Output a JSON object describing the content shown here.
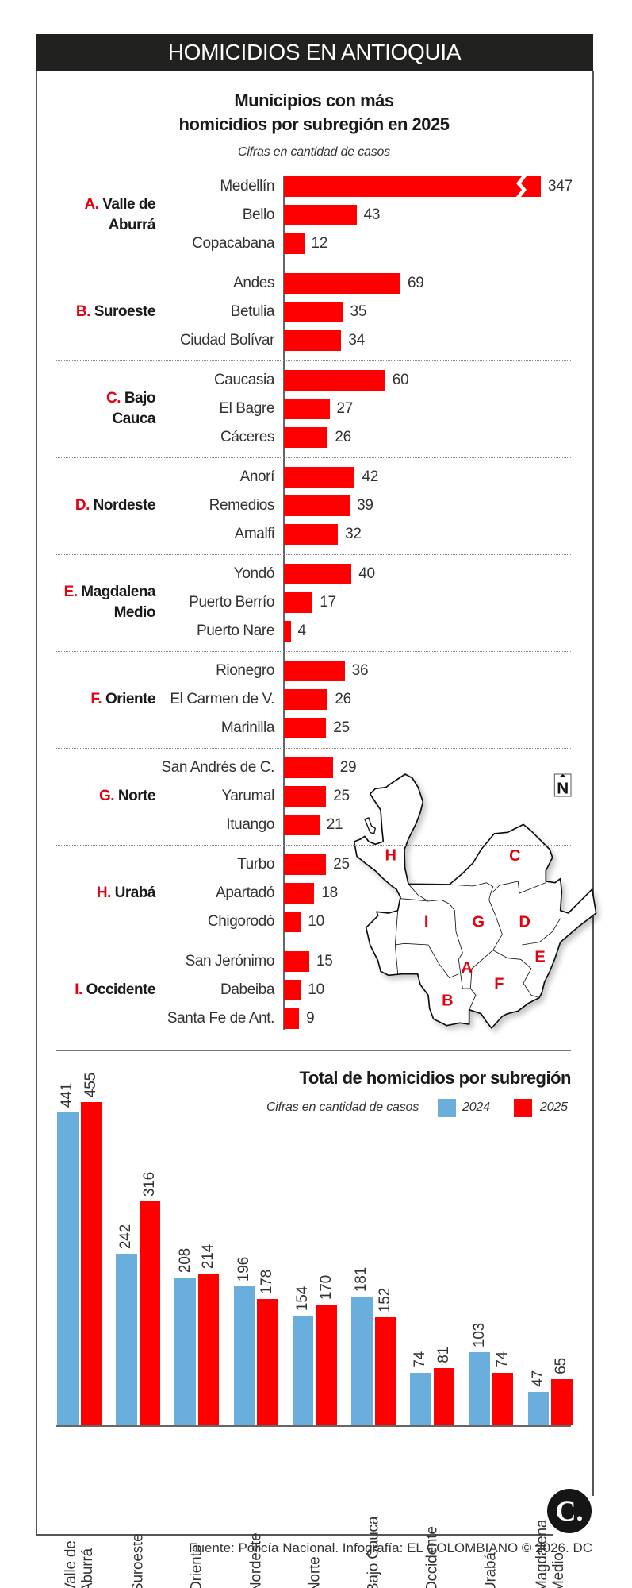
{
  "header": {
    "title": "HOMICIDIOS EN ANTIOQUIA"
  },
  "colors": {
    "accent_red": "#ff0000",
    "series_2024": "#6aaedd",
    "series_2025": "#ff0000",
    "header_bg": "#21211f"
  },
  "chart_data": [
    {
      "type": "bar",
      "orientation": "horizontal",
      "title_lines": [
        "Municipios con más",
        "homicidios por subregión en 2025"
      ],
      "subtitle": "Cifras en cantidad de casos",
      "note": "",
      "groups": [
        {
          "letter": "A.",
          "name_lines": [
            "Valle de",
            "Aburrá"
          ],
          "items": [
            {
              "name": "Medellín",
              "value": 347,
              "broken": true
            },
            {
              "name": "Bello",
              "value": 43
            },
            {
              "name": "Copacabana",
              "value": 12
            }
          ]
        },
        {
          "letter": "B.",
          "name_lines": [
            "Suroeste"
          ],
          "items": [
            {
              "name": "Andes",
              "value": 69
            },
            {
              "name": "Betulia",
              "value": 35
            },
            {
              "name": "Ciudad Bolívar",
              "value": 34
            }
          ]
        },
        {
          "letter": "C.",
          "name_lines": [
            "Bajo",
            "Cauca"
          ],
          "items": [
            {
              "name": "Caucasia",
              "value": 60
            },
            {
              "name": "El Bagre",
              "value": 27
            },
            {
              "name": "Cáceres",
              "value": 26
            }
          ]
        },
        {
          "letter": "D.",
          "name_lines": [
            "Nordeste"
          ],
          "items": [
            {
              "name": "Anorí",
              "value": 42
            },
            {
              "name": "Remedios",
              "value": 39
            },
            {
              "name": "Amalfi",
              "value": 32
            }
          ]
        },
        {
          "letter": "E.",
          "name_lines": [
            "Magdalena",
            "Medio"
          ],
          "items": [
            {
              "name": "Yondó",
              "value": 40
            },
            {
              "name": "Puerto Berrío",
              "value": 17
            },
            {
              "name": "Puerto Nare",
              "value": 4
            }
          ]
        },
        {
          "letter": "F.",
          "name_lines": [
            "Oriente"
          ],
          "items": [
            {
              "name": "Rionegro",
              "value": 36
            },
            {
              "name": "El Carmen de V.",
              "value": 26
            },
            {
              "name": "Marinilla",
              "value": 25
            }
          ]
        },
        {
          "letter": "G.",
          "name_lines": [
            "Norte"
          ],
          "items": [
            {
              "name": "San Andrés de C.",
              "value": 29
            },
            {
              "name": "Yarumal",
              "value": 25
            },
            {
              "name": "Ituango",
              "value": 21
            }
          ]
        },
        {
          "letter": "H.",
          "name_lines": [
            "Urabá"
          ],
          "items": [
            {
              "name": "Turbo",
              "value": 25
            },
            {
              "name": "Apartadó",
              "value": 18
            },
            {
              "name": "Chigorodó",
              "value": 10
            }
          ]
        },
        {
          "letter": "I.",
          "name_lines": [
            "Occidente"
          ],
          "items": [
            {
              "name": "San Jerónimo",
              "value": 15
            },
            {
              "name": "Dabeiba",
              "value": 10
            },
            {
              "name": "Santa Fe de Ant.",
              "value": 9
            }
          ]
        }
      ]
    },
    {
      "type": "bar",
      "orientation": "vertical",
      "title": "Total de homicidios por subregión",
      "subtitle": "Cifras en cantidad de casos",
      "legend_position": "top-right",
      "categories": [
        [
          "Valle de",
          "Aburrá"
        ],
        [
          "Suroeste"
        ],
        [
          "Oriente"
        ],
        [
          "Nordeste"
        ],
        [
          "Norte"
        ],
        [
          "Bajo Cauca"
        ],
        [
          "Occidente"
        ],
        [
          "Urabá"
        ],
        [
          "Magdalena",
          "Medio"
        ]
      ],
      "series": [
        {
          "name": "2024",
          "color": "#6aaedd",
          "values": [
            441,
            242,
            208,
            196,
            154,
            181,
            74,
            103,
            47
          ]
        },
        {
          "name": "2025",
          "color": "#ff0000",
          "values": [
            455,
            316,
            214,
            178,
            170,
            152,
            81,
            74,
            65
          ]
        }
      ],
      "ylim": [
        0,
        455
      ],
      "grid": false
    }
  ],
  "map": {
    "north_label": "N",
    "region_labels": [
      "H",
      "C",
      "I",
      "G",
      "D",
      "E",
      "A",
      "F",
      "B"
    ]
  },
  "logo": {
    "text": "C."
  },
  "footer": {
    "source": "Fuente: Policía Nacional. Infografía: EL COLOMBIANO © 2026. DC"
  }
}
